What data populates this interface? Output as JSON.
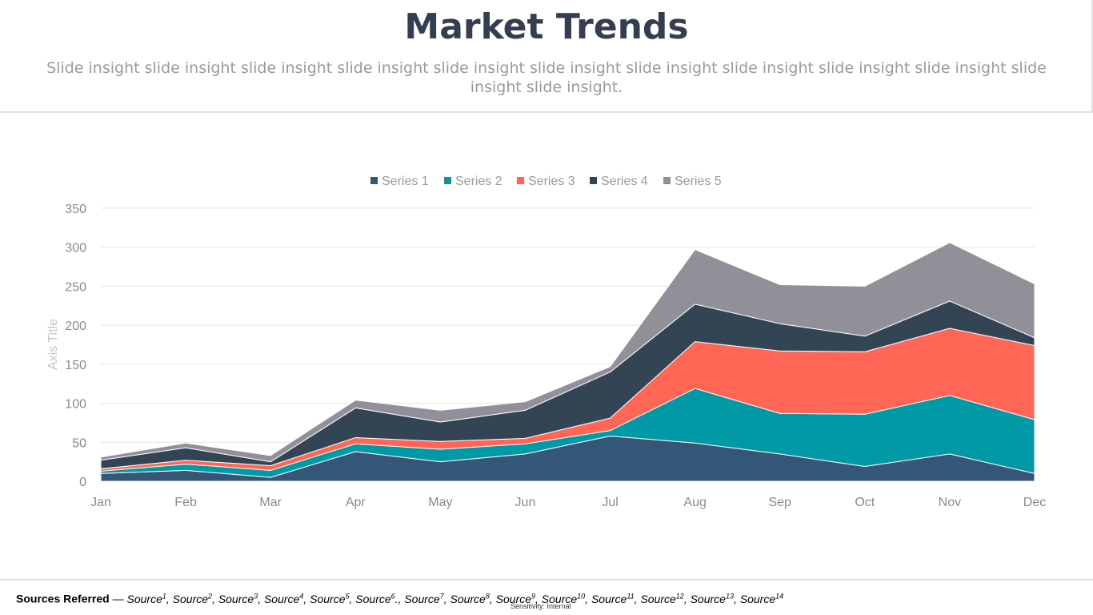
{
  "slide": {
    "title": "Market Trends",
    "subtitle": "Slide insight slide insight slide insight slide insight slide insight slide insight slide insight slide insight slide insight slide insight slide insight slide insight."
  },
  "chart_data": {
    "type": "area",
    "stacked": true,
    "categories": [
      "Jan",
      "Feb",
      "Mar",
      "Apr",
      "May",
      "Jun",
      "Jul",
      "Aug",
      "Sep",
      "Oct",
      "Nov",
      "Dec"
    ],
    "series": [
      {
        "name": "Series 1",
        "color": "#345678",
        "values": [
          10,
          14,
          5,
          38,
          25,
          35,
          58,
          49,
          35,
          19,
          35,
          10
        ]
      },
      {
        "name": "Series 2",
        "color": "#0099a5",
        "values": [
          3,
          8,
          9,
          10,
          16,
          13,
          7,
          70,
          52,
          67,
          75,
          69
        ]
      },
      {
        "name": "Series 3",
        "color": "#ff6655",
        "values": [
          3,
          5,
          6,
          8,
          10,
          7,
          16,
          60,
          80,
          80,
          86,
          95
        ]
      },
      {
        "name": "Series 4",
        "color": "#334455",
        "values": [
          11,
          16,
          5,
          38,
          25,
          36,
          59,
          48,
          35,
          20,
          35,
          10
        ]
      },
      {
        "name": "Series 5",
        "color": "#918f98",
        "values": [
          4,
          6,
          8,
          10,
          15,
          11,
          7,
          70,
          50,
          64,
          75,
          69
        ]
      }
    ],
    "ylim": [
      0,
      350
    ],
    "yticks": [
      0,
      50,
      100,
      150,
      200,
      250,
      300,
      350
    ],
    "ylabel": "Axis Title",
    "grid": true,
    "legend": "top-center"
  },
  "footer": {
    "label": "Sources Referred",
    "separator": " — ",
    "sources": [
      {
        "text": "Source",
        "sup": "1",
        "sep": ", "
      },
      {
        "text": "Source",
        "sup": "2",
        "sep": ", "
      },
      {
        "text": "Source",
        "sup": "3",
        "sep": ", "
      },
      {
        "text": "Source",
        "sup": "4",
        "sep": ", "
      },
      {
        "text": "Source",
        "sup": "5",
        "sep": ", "
      },
      {
        "text": "Source",
        "sup": "6",
        "sep": "., "
      },
      {
        "text": "Source",
        "sup": "7",
        "sep": ", "
      },
      {
        "text": "Source",
        "sup": "8",
        "sep": ", "
      },
      {
        "text": "Source",
        "sup": "9",
        "sep": ", "
      },
      {
        "text": "Source",
        "sup": "10",
        "sep": ", "
      },
      {
        "text": "Source",
        "sup": "11",
        "sep": ", "
      },
      {
        "text": "Source",
        "sup": "12",
        "sep": ", "
      },
      {
        "text": "Source",
        "sup": "13",
        "sep": ", "
      },
      {
        "text": "Source",
        "sup": "14",
        "sep": ""
      }
    ],
    "sensitivity": "Sensitivity: Internal"
  }
}
